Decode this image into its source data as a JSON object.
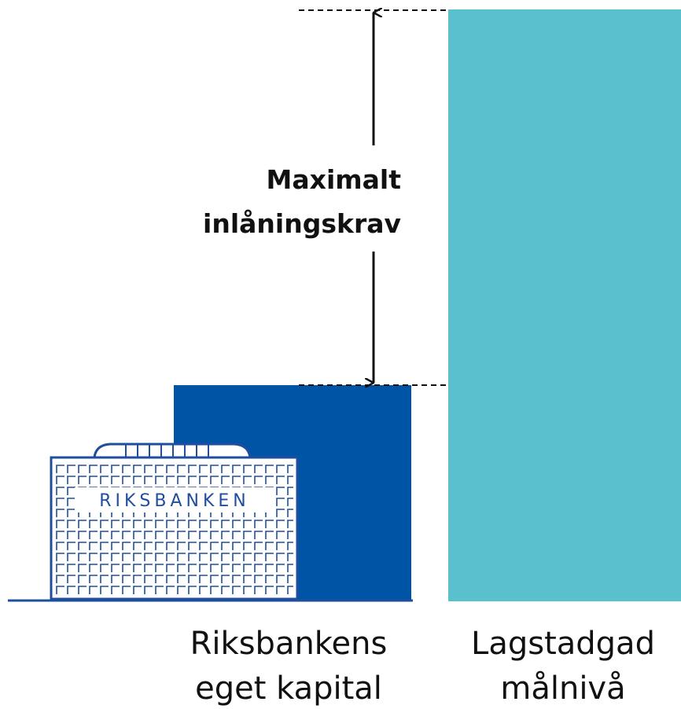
{
  "annotation": {
    "lines": [
      "Maximalt",
      "inlåningskrav"
    ]
  },
  "building": {
    "sign": "RIKSBANKEN"
  },
  "bars": [
    {
      "label_lines": [
        "Riksbankens",
        "eget kapital"
      ]
    },
    {
      "label_lines": [
        "Lagstadgad",
        "målnivå"
      ]
    }
  ]
}
